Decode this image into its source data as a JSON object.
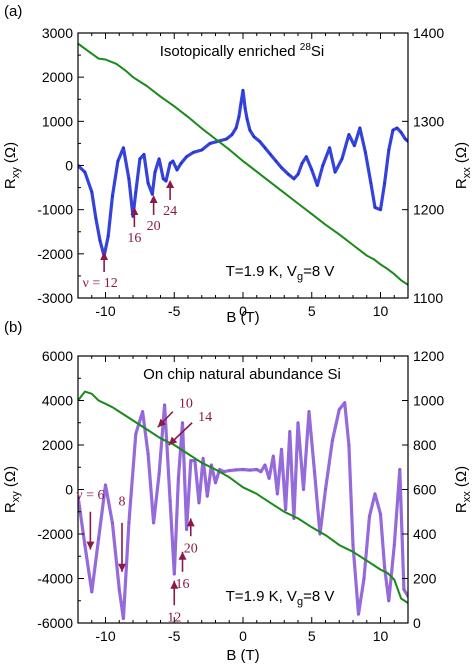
{
  "chart_data": [
    {
      "panel": "(a)",
      "type": "line",
      "annotation": "Isotopically enriched 28Si",
      "annotation_main": "Isotopically enriched ",
      "annotation_sup": "28",
      "annotation_tail": "Si",
      "conditions_main": "T=1.9 K, V",
      "conditions_sub": "g",
      "conditions_tail": "=8 V",
      "xlabel": "B (T)",
      "ylabel_left_main": "R",
      "ylabel_left_sub": "xy",
      "ylabel_left_unit": " (Ω)",
      "ylabel_right_main": "R",
      "ylabel_right_sub": "xx",
      "ylabel_right_unit": " (Ω)",
      "xlim": [
        -12,
        12
      ],
      "ylim_left": [
        -3000,
        3000
      ],
      "ylim_right": [
        1100,
        1400
      ],
      "xticks": [
        -10,
        -5,
        0,
        5,
        10
      ],
      "yticks_left": [
        -3000,
        -2000,
        -1000,
        0,
        1000,
        2000,
        3000
      ],
      "yticks_right": [
        1100,
        1200,
        1300,
        1400
      ],
      "series": [
        {
          "axis": "left",
          "color": "#1f2fd6",
          "x": [
            -12,
            -11.5,
            -11,
            -10.7,
            -10.4,
            -10.1,
            -9.8,
            -9.5,
            -9.1,
            -8.7,
            -8.3,
            -8.0,
            -7.8,
            -7.5,
            -7.2,
            -6.9,
            -6.6,
            -6.4,
            -6.1,
            -5.8,
            -5.6,
            -5.3,
            -5.1,
            -4.8,
            -4.5,
            -4.1,
            -3.6,
            -3.0,
            -2.4,
            -1.8,
            -1.2,
            -0.8,
            -0.5,
            -0.3,
            -0.15,
            0,
            0.15,
            0.3,
            0.5,
            0.8,
            1.2,
            1.6,
            2.0,
            2.4,
            2.8,
            3.3,
            3.7,
            4.0,
            4.3,
            4.6,
            5.0,
            5.4,
            5.8,
            6.3,
            6.7,
            7.2,
            7.7,
            8.1,
            8.5,
            8.9,
            9.3,
            9.6,
            10.0,
            10.3,
            10.6,
            10.9,
            11.2,
            11.5,
            11.8,
            12
          ],
          "values": [
            0,
            -150,
            -600,
            -1200,
            -1700,
            -2050,
            -1600,
            -700,
            100,
            400,
            -300,
            -1150,
            -600,
            150,
            250,
            -400,
            -650,
            -150,
            150,
            -300,
            -350,
            50,
            100,
            -100,
            50,
            200,
            300,
            350,
            500,
            550,
            600,
            700,
            850,
            1100,
            1400,
            1700,
            1300,
            1050,
            800,
            650,
            550,
            400,
            250,
            100,
            -50,
            -200,
            -300,
            -200,
            50,
            200,
            -100,
            -450,
            0,
            400,
            -150,
            150,
            700,
            450,
            850,
            300,
            -400,
            -950,
            -1000,
            -400,
            350,
            800,
            850,
            750,
            600,
            550
          ]
        },
        {
          "axis": "right",
          "color": "#1a8a1a",
          "x": [
            -12,
            -11.3,
            -10.5,
            -10,
            -9.2,
            -8.5,
            -8,
            -7,
            -6,
            -5,
            -4,
            -3,
            -2,
            -1,
            0,
            1,
            2,
            3,
            4,
            5,
            6,
            7,
            8,
            9,
            9.5,
            10,
            10.5,
            11,
            11.5,
            12
          ],
          "values": [
            1388,
            1380,
            1371,
            1370,
            1365,
            1357,
            1350,
            1340,
            1328,
            1317,
            1305,
            1292,
            1280,
            1268,
            1255,
            1243,
            1231,
            1219,
            1207,
            1195,
            1183,
            1172,
            1160,
            1148,
            1144,
            1138,
            1133,
            1127,
            1120,
            1115
          ]
        }
      ],
      "nu_annotations": [
        {
          "label": "ν = 12",
          "x": -10.1
        },
        {
          "label": "16",
          "x": -7.9
        },
        {
          "label": "20",
          "x": -6.5
        },
        {
          "label": "24",
          "x": -5.3
        }
      ]
    },
    {
      "panel": "(b)",
      "type": "line",
      "annotation": "On chip natural abundance Si",
      "conditions_main": "T=1.9 K, V",
      "conditions_sub": "g",
      "conditions_tail": "=8 V",
      "xlabel": "B (T)",
      "ylabel_left_main": "R",
      "ylabel_left_sub": "xy",
      "ylabel_left_unit": " (Ω)",
      "ylabel_right_main": "R",
      "ylabel_right_sub": "xx",
      "ylabel_right_unit": " (Ω)",
      "xlim": [
        -12,
        12
      ],
      "ylim_left": [
        -6000,
        6000
      ],
      "ylim_right": [
        0,
        1200
      ],
      "xticks": [
        -10,
        -5,
        0,
        5,
        10
      ],
      "yticks_left": [
        -6000,
        -4000,
        -2000,
        0,
        2000,
        4000,
        6000
      ],
      "yticks_right": [
        0,
        200,
        400,
        600,
        800,
        1000,
        1200
      ],
      "series": [
        {
          "axis": "left",
          "color": "#8a5ad6",
          "x": [
            -12,
            -11.5,
            -11.0,
            -10.5,
            -10.0,
            -9.5,
            -9.0,
            -8.7,
            -8.3,
            -7.8,
            -7.3,
            -6.9,
            -6.5,
            -6.1,
            -5.7,
            -5.3,
            -5.0,
            -4.7,
            -4.4,
            -4.1,
            -3.8,
            -3.5,
            -3.2,
            -2.9,
            -2.6,
            -2.3,
            -2.0,
            -1.7,
            -1.4,
            -1.0,
            -0.5,
            0,
            0.5,
            1.0,
            1.3,
            1.6,
            1.9,
            2.2,
            2.5,
            2.8,
            3.1,
            3.4,
            3.7,
            4.0,
            4.4,
            4.8,
            5.2,
            5.6,
            6.0,
            6.5,
            7.0,
            7.4,
            7.7,
            8.0,
            8.4,
            8.8,
            9.2,
            9.6,
            10.0,
            10.3,
            10.6,
            11.0,
            11.4,
            11.7,
            12
          ],
          "values": [
            -300,
            -2500,
            -4600,
            -2200,
            200,
            -1500,
            -4500,
            -5800,
            -1500,
            2500,
            3500,
            1600,
            -1500,
            700,
            3800,
            -500,
            -3800,
            500,
            3000,
            -1800,
            1300,
            1300,
            -600,
            1400,
            -300,
            1100,
            300,
            900,
            800,
            850,
            880,
            900,
            870,
            900,
            800,
            1100,
            500,
            1500,
            -200,
            1800,
            -900,
            2600,
            -1300,
            3000,
            0,
            3500,
            800,
            -2000,
            0,
            2200,
            3600,
            3900,
            2000,
            -2500,
            -5600,
            -4000,
            -1200,
            -200,
            -1100,
            -3500,
            -5000,
            -2500,
            900,
            -4500,
            -4800
          ]
        },
        {
          "axis": "right",
          "color": "#1a8a1a",
          "x": [
            -12,
            -11.5,
            -11,
            -10.5,
            -10,
            -9.5,
            -9,
            -8,
            -7,
            -6,
            -5,
            -4,
            -3,
            -2,
            -1,
            0,
            1,
            2,
            3,
            4,
            5,
            6,
            7,
            8,
            9,
            10,
            10.5,
            11,
            11.5,
            12
          ],
          "values": [
            1000,
            1040,
            1030,
            1000,
            985,
            970,
            950,
            910,
            870,
            830,
            800,
            760,
            720,
            690,
            655,
            610,
            580,
            540,
            500,
            470,
            430,
            395,
            350,
            320,
            280,
            240,
            225,
            195,
            110,
            90
          ]
        }
      ],
      "nu_annotations": [
        {
          "label": "ν = 6",
          "x": -11.1,
          "y_from": -1000,
          "y_to": -2700,
          "label_y": -200,
          "label_dx": 0
        },
        {
          "label": "8",
          "x": -8.8,
          "y_from": -1500,
          "y_to": -3700,
          "label_y": -500,
          "label_dx": 0
        },
        {
          "label": "10",
          "x": -6.2,
          "y_from": 3500,
          "y_to": 2800,
          "label_y": 3900,
          "label_dx": 1.1
        },
        {
          "label": "14",
          "x": -5.4,
          "y_from": 3000,
          "y_to": 2000,
          "label_y": 3300,
          "label_dx": 1.7
        },
        {
          "label": "12",
          "x": -5.0,
          "y_from": -5200,
          "y_to": -4100,
          "label_y": -5700,
          "label_dx": 0
        },
        {
          "label": "16",
          "x": -4.4,
          "y_from": -3700,
          "y_to": -2800,
          "label_y": -4200,
          "label_dx": 0
        },
        {
          "label": "20",
          "x": -3.8,
          "y_from": -2100,
          "y_to": -1300,
          "label_y": -2600,
          "label_dx": 0
        }
      ]
    }
  ]
}
